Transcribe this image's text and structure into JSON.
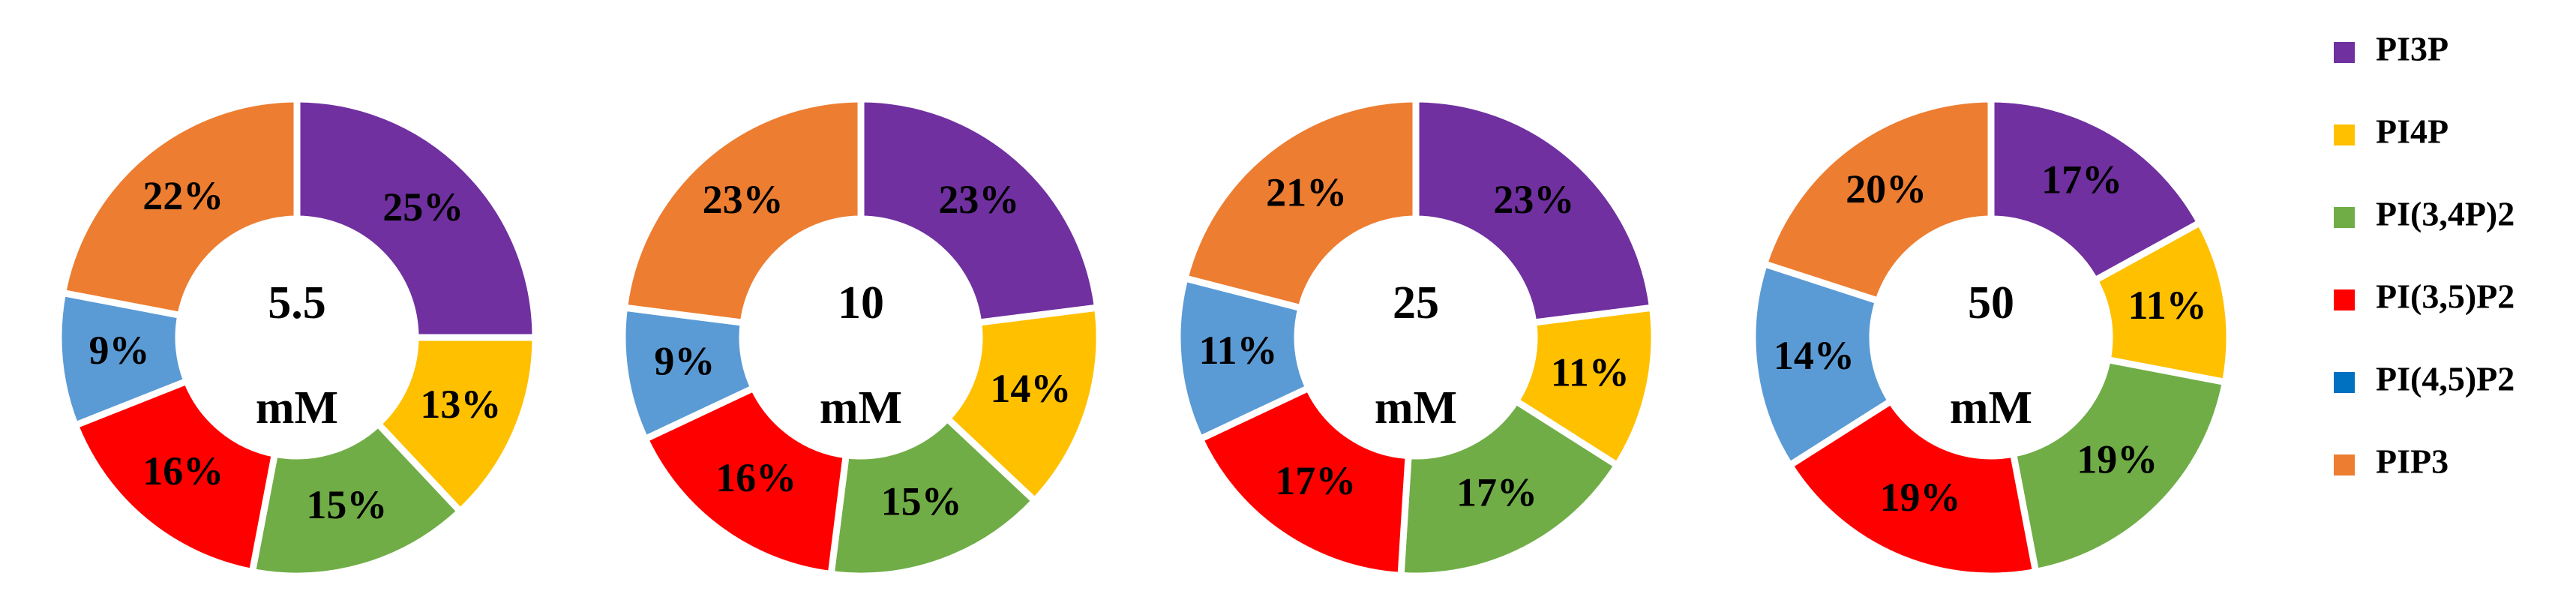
{
  "chart_data": [
    {
      "type": "pie",
      "center_label": [
        "5.5",
        "mM"
      ],
      "categories": [
        "PI3P",
        "PI4P",
        "PI(3,4P)2",
        "PI(3,5)P2",
        "PI(4,5)P2",
        "PIP3"
      ],
      "colors": [
        "#7030a0",
        "#ffc000",
        "#70ad47",
        "#ff0000",
        "#5b9bd5",
        "#ed7d31"
      ],
      "values": [
        25,
        13,
        15,
        16,
        9,
        22
      ],
      "value_labels": [
        "25%",
        "13%",
        "15%",
        "16%",
        "9%",
        "22%"
      ]
    },
    {
      "type": "pie",
      "center_label": [
        "10",
        "mM"
      ],
      "categories": [
        "PI3P",
        "PI4P",
        "PI(3,4P)2",
        "PI(3,5)P2",
        "PI(4,5)P2",
        "PIP3"
      ],
      "colors": [
        "#7030a0",
        "#ffc000",
        "#70ad47",
        "#ff0000",
        "#5b9bd5",
        "#ed7d31"
      ],
      "values": [
        23,
        14,
        15,
        16,
        9,
        23
      ],
      "value_labels": [
        "23%",
        "14%",
        "15%",
        "16%",
        "9%",
        "23%"
      ]
    },
    {
      "type": "pie",
      "center_label": [
        "25",
        "mM"
      ],
      "categories": [
        "PI3P",
        "PI4P",
        "PI(3,4P)2",
        "PI(3,5)P2",
        "PI(4,5)P2",
        "PIP3"
      ],
      "colors": [
        "#7030a0",
        "#ffc000",
        "#70ad47",
        "#ff0000",
        "#5b9bd5",
        "#ed7d31"
      ],
      "values": [
        23,
        11,
        17,
        17,
        11,
        21
      ],
      "value_labels": [
        "23%",
        "11%",
        "17%",
        "17%",
        "11%",
        "21%"
      ]
    },
    {
      "type": "pie",
      "center_label": [
        "50",
        "mM"
      ],
      "categories": [
        "PI3P",
        "PI4P",
        "PI(3,4P)2",
        "PI(3,5)P2",
        "PI(4,5)P2",
        "PIP3"
      ],
      "colors": [
        "#7030a0",
        "#ffc000",
        "#70ad47",
        "#ff0000",
        "#5b9bd5",
        "#ed7d31"
      ],
      "values": [
        17,
        11,
        19,
        19,
        14,
        20
      ],
      "value_labels": [
        "17%",
        "11%",
        "19%",
        "19%",
        "14%",
        "20%"
      ]
    }
  ]
}
